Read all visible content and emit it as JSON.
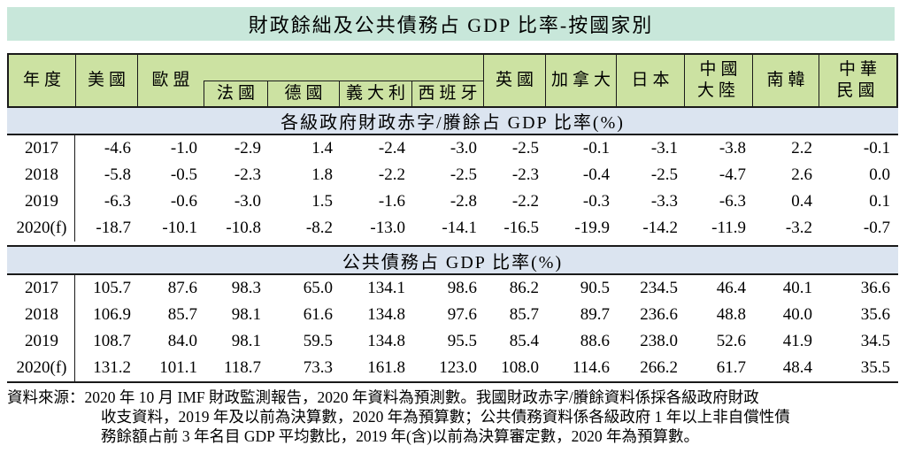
{
  "title": "財政餘絀及公共債務占 GDP 比率-按國家別",
  "table": {
    "columns": [
      "年度",
      "美國",
      "歐盟",
      "法國",
      "德國",
      "義大利",
      "西班牙",
      "英國",
      "加拿大",
      "日本",
      "中國\n大陸",
      "南韓",
      "中華\n民國"
    ],
    "sections": [
      {
        "header": "各級政府財政赤字/賸餘占 GDP 比率(%)",
        "rows": [
          {
            "year": "2017",
            "values": [
              "-4.6",
              "-1.0",
              "-2.9",
              "1.4",
              "-2.4",
              "-3.0",
              "-2.5",
              "-0.1",
              "-3.1",
              "-3.8",
              "2.2",
              "-0.1"
            ]
          },
          {
            "year": "2018",
            "values": [
              "-5.8",
              "-0.5",
              "-2.3",
              "1.8",
              "-2.2",
              "-2.5",
              "-2.3",
              "-0.4",
              "-2.5",
              "-4.7",
              "2.6",
              "0.0"
            ]
          },
          {
            "year": "2019",
            "values": [
              "-6.3",
              "-0.6",
              "-3.0",
              "1.5",
              "-1.6",
              "-2.8",
              "-2.2",
              "-0.3",
              "-3.3",
              "-6.3",
              "0.4",
              "0.1"
            ]
          },
          {
            "year": "2020(f)",
            "values": [
              "-18.7",
              "-10.1",
              "-10.8",
              "-8.2",
              "-13.0",
              "-14.1",
              "-16.5",
              "-19.9",
              "-14.2",
              "-11.9",
              "-3.2",
              "-0.7"
            ]
          }
        ]
      },
      {
        "header": "公共債務占 GDP 比率(%)",
        "rows": [
          {
            "year": "2017",
            "values": [
              "105.7",
              "87.6",
              "98.3",
              "65.0",
              "134.1",
              "98.6",
              "86.2",
              "90.5",
              "234.5",
              "46.4",
              "40.1",
              "36.6"
            ]
          },
          {
            "year": "2018",
            "values": [
              "106.9",
              "85.7",
              "98.1",
              "61.6",
              "134.8",
              "97.6",
              "85.7",
              "89.7",
              "236.6",
              "48.8",
              "40.0",
              "35.6"
            ]
          },
          {
            "year": "2019",
            "values": [
              "108.7",
              "84.0",
              "98.1",
              "59.5",
              "134.8",
              "95.5",
              "85.4",
              "88.6",
              "238.0",
              "52.6",
              "41.9",
              "34.5"
            ]
          },
          {
            "year": "2020(f)",
            "values": [
              "131.2",
              "101.1",
              "118.7",
              "73.3",
              "161.8",
              "123.0",
              "108.0",
              "114.6",
              "266.2",
              "61.7",
              "48.4",
              "35.5"
            ]
          }
        ]
      }
    ]
  },
  "footer": {
    "lines": [
      "資料來源：2020 年 10 月 IMF 財政監測報告，2020 年資料為預測數。我國財政赤字/賸餘資料係採各級政府財政",
      "收支資料，2019 年及以前為決算數，2020 年為預算數；公共債務資料係各級政府 1 年以上非自償性債",
      "務餘額占前 3 年名目 GDP 平均數比，2019 年(含)以前為決算審定數，2020 年為預算數。"
    ]
  },
  "colors": {
    "title_bg": "#c8e7da",
    "header_bg": "#cce2a2",
    "band_bg": "#dbe4f0",
    "border": "#1a1a1a",
    "text": "#000000"
  }
}
